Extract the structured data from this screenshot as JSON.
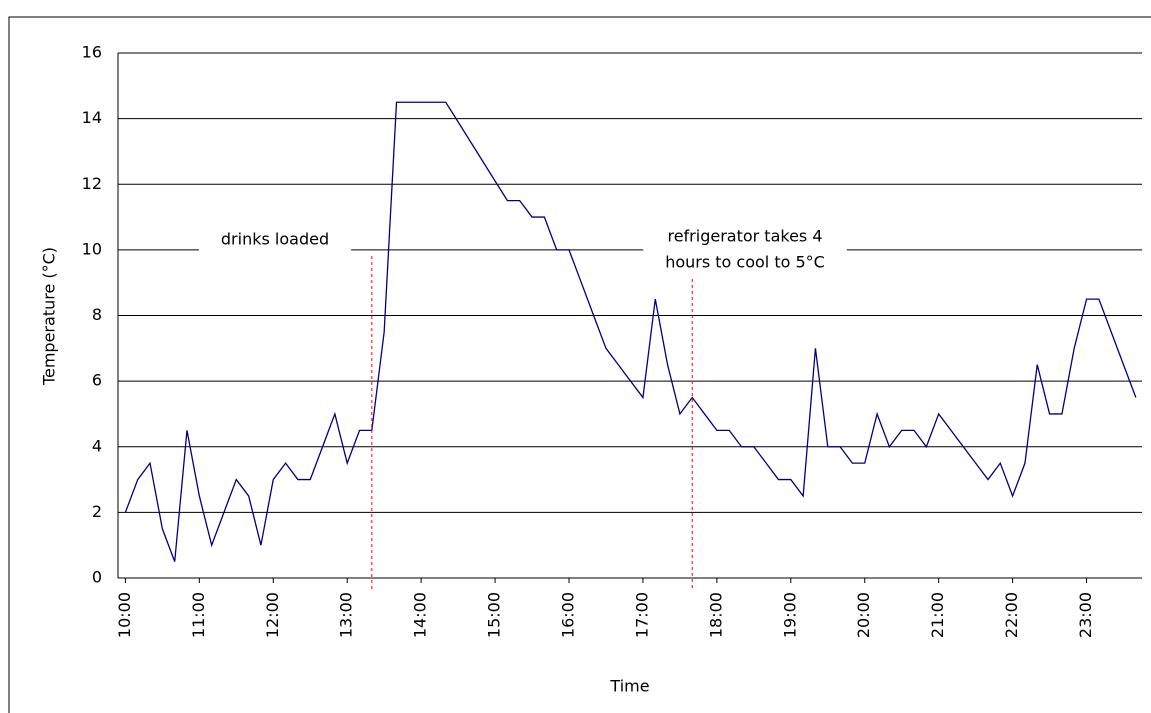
{
  "chart_data": {
    "type": "line",
    "xlabel": "Time",
    "ylabel": "Temperature (°C)",
    "x": [
      10,
      10.167,
      10.333,
      10.5,
      10.667,
      10.833,
      11,
      11.167,
      11.333,
      11.5,
      11.667,
      11.833,
      12,
      12.167,
      12.333,
      12.5,
      12.667,
      12.833,
      13,
      13.167,
      13.333,
      13.5,
      13.667,
      13.833,
      14,
      14.167,
      14.333,
      14.5,
      14.667,
      14.833,
      15,
      15.167,
      15.333,
      15.5,
      15.667,
      15.833,
      16,
      16.167,
      16.333,
      16.5,
      16.667,
      16.833,
      17,
      17.167,
      17.333,
      17.5,
      17.667,
      17.833,
      18,
      18.167,
      18.333,
      18.5,
      18.667,
      18.833,
      19,
      19.167,
      19.333,
      19.5,
      19.667,
      19.833,
      20,
      20.167,
      20.333,
      20.5,
      20.667,
      20.833,
      21,
      21.167,
      21.333,
      21.5,
      21.667,
      21.833,
      22,
      22.167,
      22.333,
      22.5,
      22.667,
      22.833,
      23,
      23.167,
      23.333,
      23.5,
      23.667
    ],
    "series": [
      {
        "name": "Temperature",
        "color": "#000080",
        "values": [
          2,
          3,
          3.5,
          1.5,
          0.5,
          4.5,
          2.5,
          1,
          2,
          3,
          2.5,
          1,
          3,
          3.5,
          3,
          3,
          4,
          5,
          3.5,
          4.5,
          4.5,
          7.5,
          14.5,
          14.5,
          14.5,
          14.5,
          14.5,
          13.9,
          13.3,
          12.7,
          12.1,
          11.5,
          11.5,
          11,
          11,
          10,
          10,
          9,
          8,
          7,
          6.5,
          6,
          5.5,
          8.5,
          6.5,
          5,
          5.5,
          5,
          4.5,
          4.5,
          4,
          4,
          3.5,
          3,
          3,
          2.5,
          7,
          4,
          4,
          3.5,
          3.5,
          5,
          4,
          4.5,
          4.5,
          4,
          5,
          4.5,
          4,
          3.5,
          3,
          3.5,
          2.5,
          3.5,
          6.5,
          5,
          5,
          7,
          8.5,
          8.5,
          7.5,
          6.5,
          5.5
        ]
      }
    ],
    "xlim": [
      9.9,
      23.75
    ],
    "xticks": [
      {
        "value": 10,
        "label": "10:00"
      },
      {
        "value": 11,
        "label": "11:00"
      },
      {
        "value": 12,
        "label": "12:00"
      },
      {
        "value": 13,
        "label": "13:00"
      },
      {
        "value": 14,
        "label": "14:00"
      },
      {
        "value": 15,
        "label": "15:00"
      },
      {
        "value": 16,
        "label": "16:00"
      },
      {
        "value": 17,
        "label": "17:00"
      },
      {
        "value": 18,
        "label": "18:00"
      },
      {
        "value": 19,
        "label": "19:00"
      },
      {
        "value": 20,
        "label": "20:00"
      },
      {
        "value": 21,
        "label": "21:00"
      },
      {
        "value": 22,
        "label": "22:00"
      },
      {
        "value": 23,
        "label": "23:00"
      }
    ],
    "ylim": [
      0,
      16
    ],
    "yticks": [
      0,
      2,
      4,
      6,
      8,
      10,
      12,
      14,
      16
    ],
    "grid": true,
    "annotations": [
      {
        "x": 13.333,
        "color": "#ff0000",
        "lines": [
          "drinks loaded"
        ]
      },
      {
        "x": 17.667,
        "color": "#ff0000",
        "lines": [
          "refrigerator takes 4",
          "hours to cool to 5°C"
        ]
      }
    ]
  }
}
